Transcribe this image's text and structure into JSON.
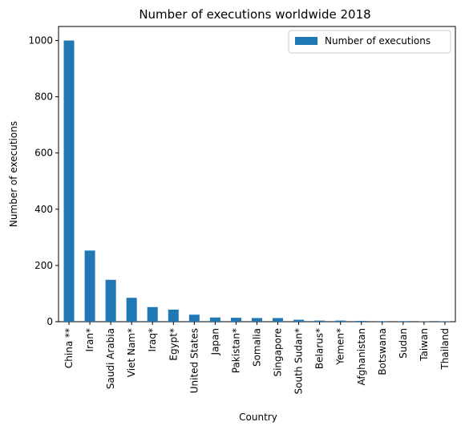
{
  "chart_data": {
    "type": "bar",
    "title": "Number of executions worldwide 2018",
    "xlabel": "Country",
    "ylabel": "Number of executions",
    "ylim": [
      0,
      1050
    ],
    "yticks": [
      0,
      200,
      400,
      600,
      800,
      1000
    ],
    "grid": false,
    "legend_position": "top-right",
    "color": "#1f77b4",
    "categories": [
      "China **",
      "Iran*",
      "Saudi Arabia",
      "Viet Nam*",
      "Iraq*",
      "Egypt*",
      "United States",
      "Japan",
      "Pakistan*",
      "Somalia",
      "Singapore",
      "South Sudan*",
      "Belarus*",
      "Yemen*",
      "Afghanistan",
      "Botswana",
      "Sudan",
      "Taiwan",
      "Thailand"
    ],
    "series": [
      {
        "name": "Number of executions",
        "values": [
          1000,
          253,
          149,
          85,
          52,
          43,
          25,
          15,
          14,
          13,
          13,
          7,
          4,
          4,
          3,
          2,
          2,
          1,
          1
        ]
      }
    ]
  }
}
